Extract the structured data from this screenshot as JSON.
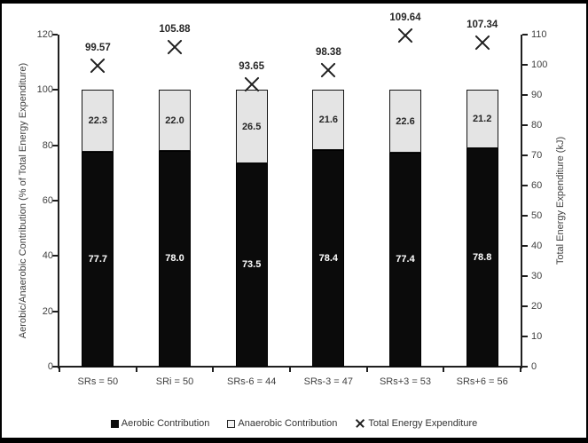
{
  "chart_data": {
    "type": "bar",
    "subtype": "stacked-percent-with-scatter-overlay",
    "grid": false,
    "legend_position": "bottom",
    "categories": [
      "SRs = 50",
      "SRi = 50",
      "SRs-6 = 44",
      "SRs-3 = 47",
      "SRs+3 = 53",
      "SRs+6 = 56"
    ],
    "series": [
      {
        "name": "Aerobic Contribution",
        "values": [
          77.7,
          78.0,
          73.5,
          78.4,
          77.4,
          78.8
        ],
        "color": "#0b0b0b",
        "label_color": "#ffffff",
        "swatch": "filled-square"
      },
      {
        "name": "Anaerobic Contribution",
        "values": [
          22.3,
          22.0,
          26.5,
          21.6,
          22.6,
          21.2
        ],
        "color": "#e4e4e4",
        "label_color": "#262626",
        "swatch": "outlined-square"
      }
    ],
    "scatter_series": {
      "name": "Total Energy Expenditure",
      "marker": "x",
      "axis": "right",
      "values": [
        99.57,
        105.88,
        93.65,
        98.38,
        109.64,
        107.34
      ],
      "color": "#1f1f1f"
    },
    "left_axis": {
      "title": "Aerobic/Anaerobic Contribution (% of Total Energy Expenditure)",
      "min": 0,
      "max": 120,
      "step": 20
    },
    "right_axis": {
      "title": "Total Energy Expenditure (kJ)",
      "min": 0,
      "max": 110,
      "step": 10
    },
    "legend": [
      {
        "label": "Aerobic Contribution",
        "swatch": "filled-square"
      },
      {
        "label": "Anaerobic Contribution",
        "swatch": "outlined-square"
      },
      {
        "label": "Total Energy Expenditure",
        "swatch": "x-marker"
      }
    ],
    "colors": {
      "aerobic": "#0b0b0b",
      "anaerobic_fill": "#e4e4e4",
      "axis": "#1f1f1f",
      "text": "#404040",
      "background": "#ffffff"
    }
  }
}
